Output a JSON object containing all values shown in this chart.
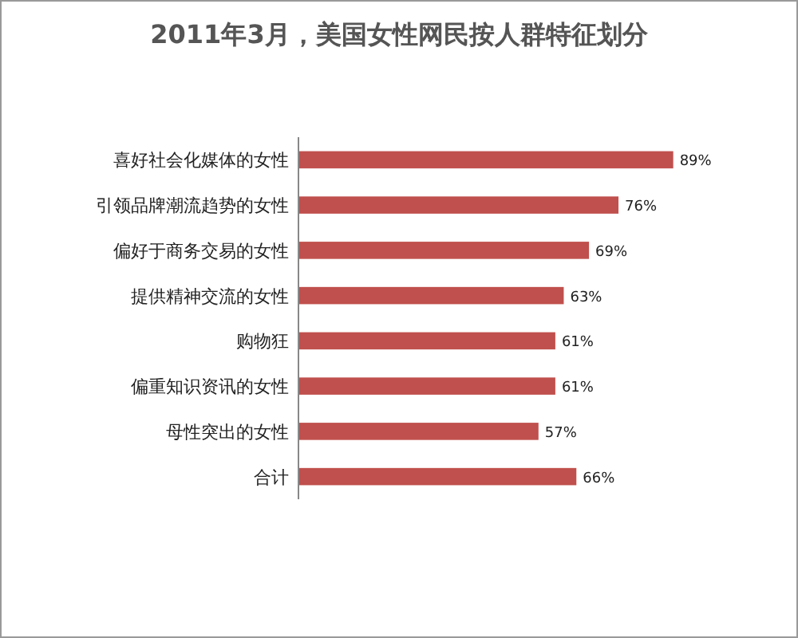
{
  "chart_data": {
    "type": "bar",
    "orientation": "horizontal",
    "title": "2011年3月，美国女性网民按人群特征划分",
    "categories": [
      "喜好社会化媒体的女性",
      "引领品牌潮流趋势的女性",
      "偏好于商务交易的女性",
      "提供精神交流的女性",
      "购物狂",
      "偏重知识资讯的女性",
      "母性突出的女性",
      "合计"
    ],
    "values": [
      89,
      76,
      69,
      63,
      61,
      61,
      57,
      66
    ],
    "value_labels": [
      "89%",
      "76%",
      "69%",
      "63%",
      "61%",
      "61%",
      "57%",
      "66%"
    ],
    "color": "#c0504d"
  }
}
